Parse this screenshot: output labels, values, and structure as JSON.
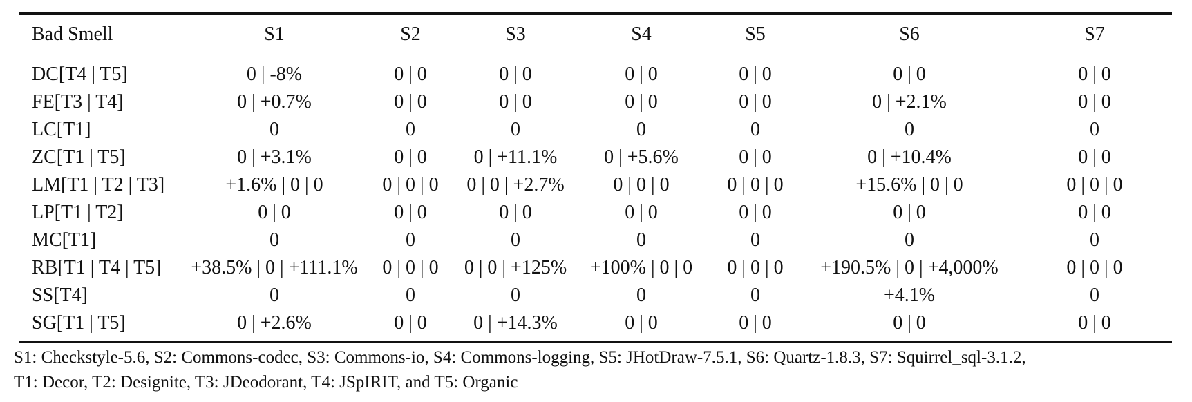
{
  "table": {
    "headers": [
      "Bad Smell",
      "S1",
      "S2",
      "S3",
      "S4",
      "S5",
      "S6",
      "S7"
    ],
    "rows": [
      [
        "DC[T4 | T5]",
        "0 | -8%",
        "0 | 0",
        "0 | 0",
        "0 | 0",
        "0 | 0",
        "0 | 0",
        "0 | 0"
      ],
      [
        "FE[T3 | T4]",
        "0 | +0.7%",
        "0 | 0",
        "0 | 0",
        "0 | 0",
        "0 | 0",
        "0 | +2.1%",
        "0 | 0"
      ],
      [
        "LC[T1]",
        "0",
        "0",
        "0",
        "0",
        "0",
        "0",
        "0"
      ],
      [
        "ZC[T1 | T5]",
        "0 | +3.1%",
        "0 | 0",
        "0 | +11.1%",
        "0 | +5.6%",
        "0 | 0",
        "0 | +10.4%",
        "0 | 0"
      ],
      [
        "LM[T1 | T2 | T3]",
        "+1.6% | 0 | 0",
        "0 | 0 | 0",
        "0 | 0 | +2.7%",
        "0 | 0 | 0",
        "0 | 0 | 0",
        "+15.6% | 0 | 0",
        "0 | 0 | 0"
      ],
      [
        "LP[T1 | T2]",
        "0 | 0",
        "0 | 0",
        "0 | 0",
        "0 | 0",
        "0 | 0",
        "0 | 0",
        "0 | 0"
      ],
      [
        "MC[T1]",
        "0",
        "0",
        "0",
        "0",
        "0",
        "0",
        "0"
      ],
      [
        "RB[T1 | T4 | T5]",
        "+38.5% | 0 | +111.1%",
        "0 | 0 | 0",
        "0 | 0 | +125%",
        "+100% | 0 | 0",
        "0 | 0 | 0",
        "+190.5% | 0 | +4,000%",
        "0 | 0 | 0"
      ],
      [
        "SS[T4]",
        "0",
        "0",
        "0",
        "0",
        "0",
        "+4.1%",
        "0"
      ],
      [
        "SG[T1 | T5]",
        "0 | +2.6%",
        "0 | 0",
        "0 | +14.3%",
        "0 | 0",
        "0 | 0",
        "0 | 0",
        "0 | 0"
      ]
    ]
  },
  "note": {
    "line1": "S1: Checkstyle-5.6, S2: Commons-codec, S3: Commons-io, S4: Commons-logging, S5: JHotDraw-7.5.1, S6: Quartz-1.8.3, S7: Squirrel_sql-3.1.2,",
    "line2": "T1: Decor, T2: Designite, T3: JDeodorant, T4: JSpIRIT, and T5: Organic"
  }
}
